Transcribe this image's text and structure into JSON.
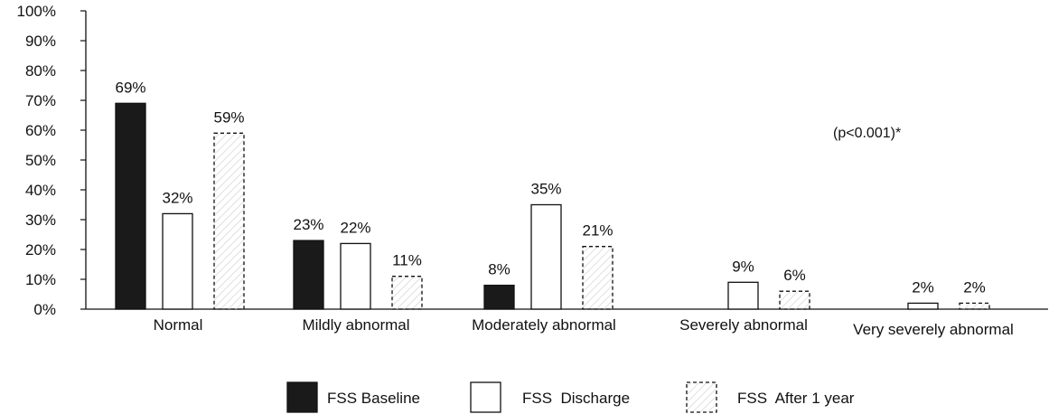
{
  "chart_data": {
    "type": "bar",
    "categories": [
      "Normal",
      "Mildly abnormal",
      "Moderately abnormal",
      "Severely abnormal",
      "Very severely abnormal"
    ],
    "series": [
      {
        "name": "FSS Baseline",
        "values": [
          69,
          23,
          8,
          null,
          null
        ],
        "labels": [
          "69%",
          "23%",
          "8%",
          "",
          ""
        ]
      },
      {
        "name": "FSS  Discharge",
        "values": [
          32,
          22,
          35,
          9,
          2
        ],
        "labels": [
          "32%",
          "22%",
          "35%",
          "9%",
          "2%"
        ]
      },
      {
        "name": "FSS  After 1 year",
        "values": [
          59,
          11,
          21,
          6,
          2
        ],
        "labels": [
          "59%",
          "11%",
          "21%",
          "6%",
          "2%"
        ]
      }
    ],
    "yticks": [
      "0%",
      "10%",
      "20%",
      "30%",
      "40%",
      "50%",
      "60%",
      "70%",
      "80%",
      "90%",
      "100%"
    ],
    "ylim": [
      0,
      100
    ],
    "annotation": "(p<0.001)*",
    "legend_position": "bottom",
    "grid": false,
    "colors": {
      "baseline": "#1a1a1a",
      "discharge": "#ffffff",
      "after": "#ffffff",
      "stroke": "#111111",
      "hatch": "#cfcfcf"
    }
  }
}
